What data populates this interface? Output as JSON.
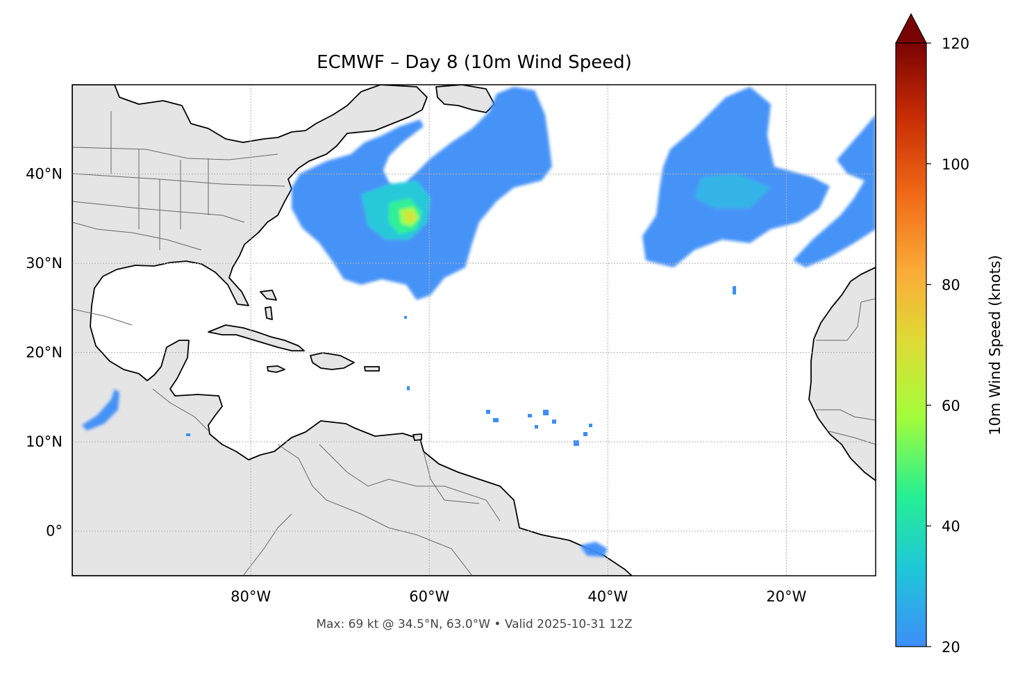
{
  "title": "ECMWF – Day 8 (10m Wind Speed)",
  "caption": "Max: 69 kt @ 34.5°N, 63.0°W • Valid 2025-10-31 12Z",
  "map": {
    "extent": {
      "lon": [
        -100,
        -10
      ],
      "lat": [
        -5,
        50
      ]
    },
    "lat_ticks": [
      {
        "value": 40,
        "label": "40°N"
      },
      {
        "value": 30,
        "label": "30°N"
      },
      {
        "value": 20,
        "label": "20°N"
      },
      {
        "value": 10,
        "label": "10°N"
      },
      {
        "value": 0,
        "label": "0°"
      }
    ],
    "lon_ticks": [
      {
        "value": -80,
        "label": "80°W"
      },
      {
        "value": -60,
        "label": "60°W"
      },
      {
        "value": -40,
        "label": "40°W"
      },
      {
        "value": -20,
        "label": "20°W"
      }
    ],
    "land_color": "#e5e5e5",
    "coast_color": "#000000",
    "border_color": "#666666",
    "grid": true
  },
  "colorbar": {
    "label": "10m Wind Speed (knots)",
    "min": 20,
    "max": 120,
    "extend": "max",
    "ticks": [
      {
        "value": 20,
        "label": "20"
      },
      {
        "value": 40,
        "label": "40"
      },
      {
        "value": 60,
        "label": "60"
      },
      {
        "value": 80,
        "label": "80"
      },
      {
        "value": 100,
        "label": "100"
      },
      {
        "value": 120,
        "label": "120"
      }
    ],
    "colors": [
      "#3d8ef8",
      "#1fc7d8",
      "#26ef92",
      "#a3fc3b",
      "#dcdd36",
      "#fbac38",
      "#f06916",
      "#c72b04",
      "#7a0403"
    ]
  },
  "max_wind": {
    "speed": 69,
    "lat": 34.5,
    "lon": -63.0
  }
}
